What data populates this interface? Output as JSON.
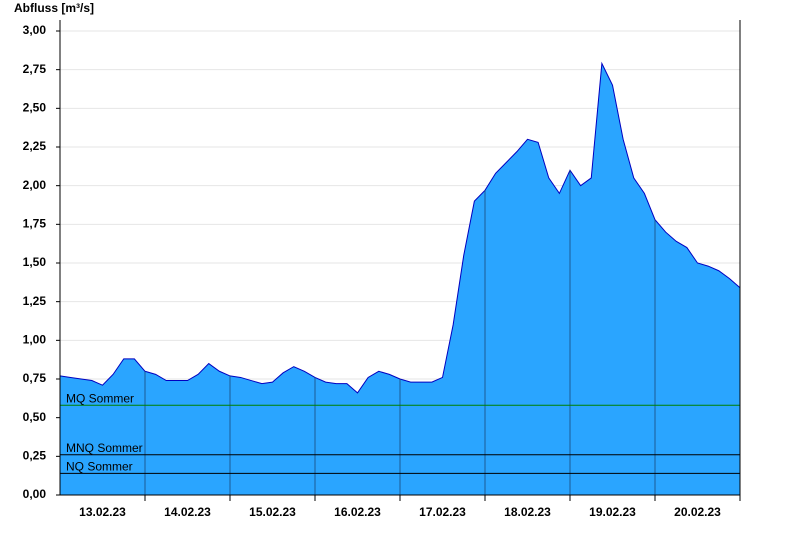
{
  "chart_data": {
    "type": "area",
    "title": "Abfluss [m³/s]",
    "x": [
      0,
      0.125,
      0.25,
      0.375,
      0.5,
      0.625,
      0.75,
      0.875,
      1,
      1.125,
      1.25,
      1.375,
      1.5,
      1.625,
      1.75,
      1.875,
      2,
      2.125,
      2.25,
      2.375,
      2.5,
      2.625,
      2.75,
      2.875,
      3,
      3.125,
      3.25,
      3.375,
      3.5,
      3.625,
      3.75,
      3.875,
      4,
      4.125,
      4.25,
      4.375,
      4.5,
      4.625,
      4.75,
      4.875,
      5,
      5.125,
      5.25,
      5.375,
      5.5,
      5.625,
      5.75,
      5.875,
      6,
      6.125,
      6.25,
      6.375,
      6.5,
      6.625,
      6.75,
      6.875,
      7,
      7.125,
      7.25,
      7.375,
      7.5,
      7.625,
      7.75,
      7.875,
      8
    ],
    "values": [
      0.77,
      0.76,
      0.75,
      0.74,
      0.71,
      0.78,
      0.88,
      0.88,
      0.8,
      0.78,
      0.74,
      0.74,
      0.74,
      0.78,
      0.85,
      0.8,
      0.77,
      0.76,
      0.74,
      0.72,
      0.73,
      0.79,
      0.83,
      0.8,
      0.76,
      0.73,
      0.72,
      0.72,
      0.66,
      0.76,
      0.8,
      0.78,
      0.75,
      0.73,
      0.73,
      0.73,
      0.76,
      1.1,
      1.55,
      1.9,
      1.97,
      2.08,
      2.15,
      2.22,
      2.3,
      2.28,
      2.05,
      1.95,
      2.1,
      2.0,
      2.05,
      2.79,
      2.65,
      2.3,
      2.05,
      1.95,
      1.78,
      1.7,
      1.64,
      1.6,
      1.5,
      1.48,
      1.45,
      1.4,
      1.34
    ],
    "color": "#2aa5ff",
    "line_color": "#0000c0",
    "xlim": [
      0,
      8
    ],
    "xticks": [
      {
        "value": 0.5,
        "label": "13.02.23"
      },
      {
        "value": 1.5,
        "label": "14.02.23"
      },
      {
        "value": 2.5,
        "label": "15.02.23"
      },
      {
        "value": 3.5,
        "label": "16.02.23"
      },
      {
        "value": 4.5,
        "label": "17.02.23"
      },
      {
        "value": 5.5,
        "label": "18.02.23"
      },
      {
        "value": 6.5,
        "label": "19.02.23"
      },
      {
        "value": 7.5,
        "label": "20.02.23"
      }
    ],
    "ylim": [
      0,
      3
    ],
    "yticks": [
      {
        "value": 0,
        "label": "0,00"
      },
      {
        "value": 0.25,
        "label": "0,25"
      },
      {
        "value": 0.5,
        "label": "0,50"
      },
      {
        "value": 0.75,
        "label": "0,75"
      },
      {
        "value": 1,
        "label": "1,00"
      },
      {
        "value": 1.25,
        "label": "1,25"
      },
      {
        "value": 1.5,
        "label": "1,50"
      },
      {
        "value": 1.75,
        "label": "1,75"
      },
      {
        "value": 2,
        "label": "2,00"
      },
      {
        "value": 2.25,
        "label": "2,25"
      },
      {
        "value": 2.5,
        "label": "2,50"
      },
      {
        "value": 2.75,
        "label": "2,75"
      },
      {
        "value": 3,
        "label": "3,00"
      }
    ],
    "grid": true,
    "reference_lines": [
      {
        "label": "MQ Sommer",
        "value": 0.58,
        "color": "#008000"
      },
      {
        "label": "MNQ Sommer",
        "value": 0.26,
        "color": "#000000"
      },
      {
        "label": "NQ Sommer",
        "value": 0.14,
        "color": "#000000"
      }
    ]
  }
}
